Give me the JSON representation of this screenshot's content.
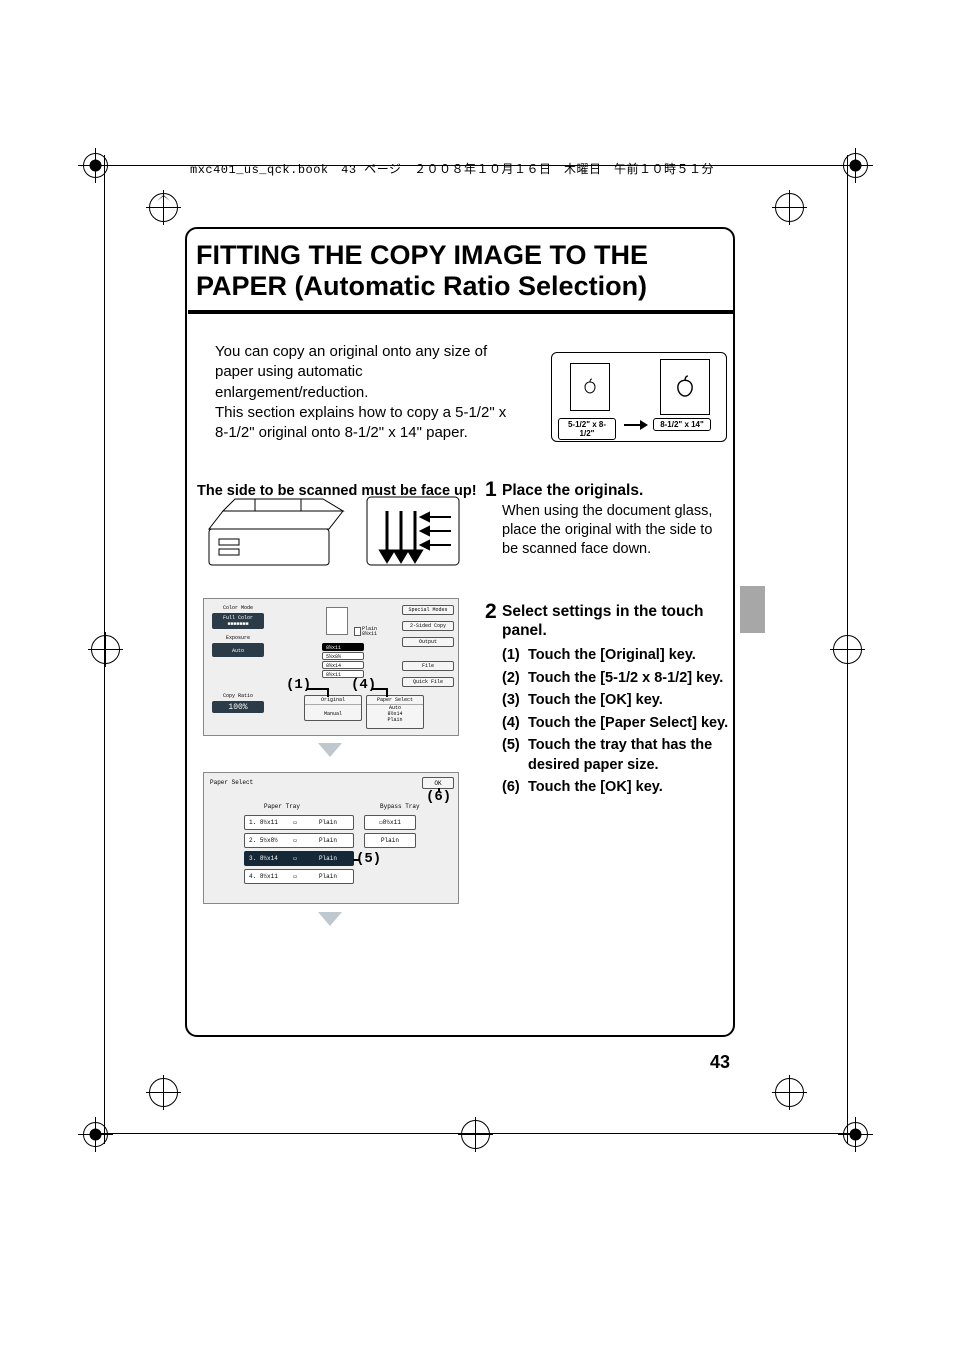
{
  "meta": {
    "header_line": "mxc401_us_qck.book　43 ページ　２００８年１０月１６日　木曜日　午前１０時５１分",
    "page_number": "43"
  },
  "title": "FITTING THE COPY IMAGE TO THE PAPER (Automatic Ratio Selection)",
  "intro": "You can copy an original onto any size of paper using automatic enlargement/reduction.\nThis section explains how to copy a 5-1/2\" x 8-1/2\" original onto 8-1/2\" x 14\" paper.",
  "illus": {
    "size_from": "5-1/2\" x 8-1/2\"",
    "size_to": "8-1/2\" x 14\""
  },
  "step_note": "The side to be scanned must be face up!",
  "step1": {
    "num": "1",
    "title": "Place the originals.",
    "body": "When using the document glass, place the original with the side to be scanned face down."
  },
  "step2": {
    "num": "2",
    "title": "Select settings in the touch panel.",
    "items": [
      {
        "n": "(1)",
        "t": "Touch the [Original] key."
      },
      {
        "n": "(2)",
        "t": "Touch the [5-1/2 x 8-1/2] key."
      },
      {
        "n": "(3)",
        "t": "Touch the [OK] key."
      },
      {
        "n": "(4)",
        "t": "Touch the [Paper Select] key."
      },
      {
        "n": "(5)",
        "t": "Touch the tray that has the desired paper size."
      },
      {
        "n": "(6)",
        "t": "Touch the [OK] key."
      }
    ]
  },
  "panel1": {
    "left_group": [
      {
        "label": "Color Mode",
        "value": "Full Color"
      },
      {
        "label": "Exposure",
        "value": "Auto"
      },
      {
        "label": "Copy Ratio",
        "value": "100%"
      }
    ],
    "bottom": {
      "original": "Original",
      "original_sub": "Manual",
      "paper_select": "Paper Select",
      "paper_lines": [
        "Auto",
        "8½x14",
        "Plain"
      ]
    },
    "right": [
      "Special Modes",
      "2-Sided Copy",
      "Output",
      "File",
      "Quick File"
    ],
    "preview_paper": {
      "label_right": "Plain\n8½x11",
      "trays": [
        "8½x11",
        "5½x8½",
        "8½x14",
        "8½x11"
      ]
    },
    "callouts": {
      "c1": "(1)",
      "c4": "(4)"
    }
  },
  "panel2": {
    "title": "Paper Select",
    "ok": "OK",
    "col_left": "Paper Tray",
    "col_right": "Bypass Tray",
    "rows": [
      {
        "n": "1.",
        "size": "8½x11",
        "type": "Plain",
        "sel": false
      },
      {
        "n": "2.",
        "size": "5½x8½",
        "type": "Plain",
        "sel": false
      },
      {
        "n": "3.",
        "size": "8½x14",
        "type": "Plain",
        "sel": true
      },
      {
        "n": "4.",
        "size": "8½x11",
        "type": "Plain",
        "sel": false
      }
    ],
    "bypass": {
      "size": "8½x11",
      "type": "Plain"
    },
    "callouts": {
      "c5": "(5)",
      "c6": "(6)"
    }
  },
  "colors": {
    "tri": "#bfc7cf",
    "panel_bg": "#efefef",
    "side_tab": "#a7a7a7"
  }
}
